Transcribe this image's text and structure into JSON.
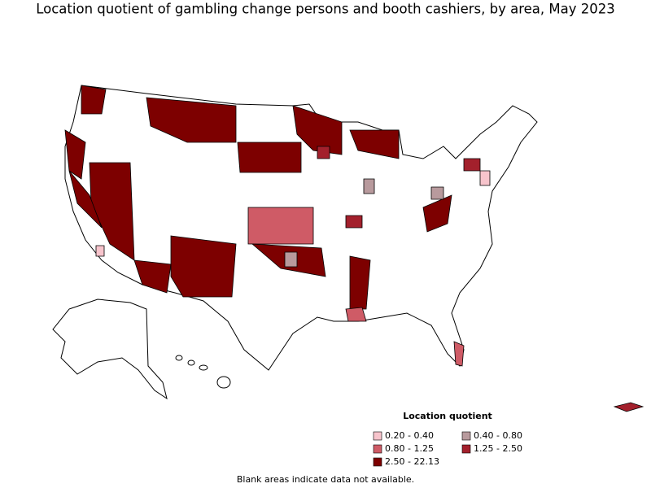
{
  "title": "Location quotient of gambling change persons and booth cashiers, by area, May 2023",
  "legend": {
    "title": "Location quotient",
    "items": [
      {
        "label": "0.20 - 0.40",
        "color": "#f7c4cc"
      },
      {
        "label": "0.40 - 0.80",
        "color": "#b89a9d"
      },
      {
        "label": "0.80 - 1.25",
        "color": "#cf5b66"
      },
      {
        "label": "1.25 - 2.50",
        "color": "#a3202c"
      },
      {
        "label": "2.50 - 22.13",
        "color": "#7d0000"
      }
    ]
  },
  "note": "Blank areas indicate data not available."
}
